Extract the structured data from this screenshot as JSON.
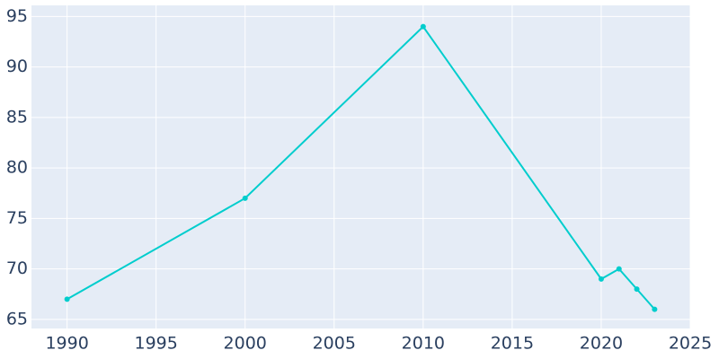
{
  "chart_data": {
    "type": "line",
    "x": [
      1990,
      2000,
      2010,
      2020,
      2021,
      2022,
      2023
    ],
    "series": [
      {
        "color": "#00cdcd",
        "values": [
          67,
          77,
          94,
          69,
          70,
          68,
          66
        ]
      }
    ],
    "xlim": [
      1988,
      2025
    ],
    "xticks": [
      1990,
      1995,
      2000,
      2005,
      2010,
      2015,
      2020,
      2025
    ],
    "ylim": [
      64.1,
      96.1
    ],
    "yticks": [
      65,
      70,
      75,
      80,
      85,
      90,
      95
    ],
    "grid": true,
    "background": "#e5ecf6"
  }
}
